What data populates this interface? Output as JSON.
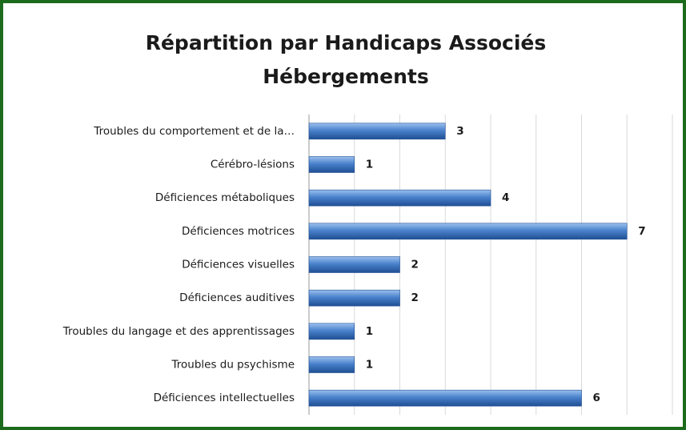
{
  "chart_data": {
    "type": "barh",
    "title": [
      "Répartition par Handicaps Associés",
      "Hébergements"
    ],
    "categories": [
      "Troubles du comportement et de la…",
      "Cérébro-lésions",
      "Déficiences métaboliques",
      "Déficiences motrices",
      "Déficiences visuelles",
      "Déficiences auditives",
      "Troubles du langage et des apprentissages",
      "Troubles du psychisme",
      "Déficiences intellectuelles"
    ],
    "values": [
      3,
      1,
      4,
      7,
      2,
      2,
      1,
      1,
      6
    ],
    "color": "#3a6fb8",
    "xlim": [
      0,
      8
    ],
    "xticks": [
      0,
      1,
      2,
      3,
      4,
      5,
      6,
      7,
      8
    ],
    "grid": true
  }
}
